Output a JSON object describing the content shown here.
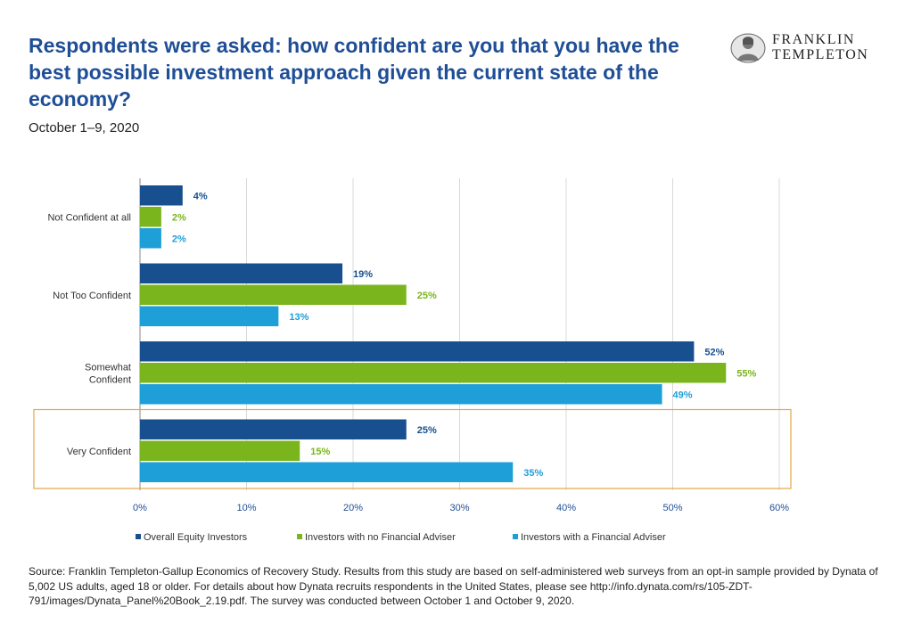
{
  "header": {
    "title": "Respondents were asked: how confident are you that you have the best possible investment approach given the current state of the economy?",
    "subtitle": "October 1–9, 2020"
  },
  "logo": {
    "line1": "FRANKLIN",
    "line2": "TEMPLETON",
    "icon": "portrait-icon"
  },
  "chart_data": {
    "type": "bar",
    "orientation": "horizontal",
    "categories": [
      "Not Confident at all",
      "Not Too Confident",
      "Somewhat Confident",
      "Very Confident"
    ],
    "series": [
      {
        "name": "Overall Equity Investors",
        "color": "#174f8f",
        "label_color": "#174f8f",
        "values": [
          4,
          19,
          52,
          25
        ]
      },
      {
        "name": "Investors with no Financial Adviser",
        "color": "#7ab51d",
        "label_color": "#7ab51d",
        "values": [
          2,
          25,
          55,
          15
        ]
      },
      {
        "name": "Investors with a Financial Adviser",
        "color": "#1e9fd8",
        "label_color": "#1e9fd8",
        "values": [
          2,
          13,
          49,
          35
        ]
      }
    ],
    "value_suffix": "%",
    "xlim": [
      0,
      60
    ],
    "xticks": [
      "0%",
      "10%",
      "20%",
      "30%",
      "40%",
      "50%",
      "60%"
    ],
    "grid": true,
    "legend_position": "bottom",
    "highlighted_category": "Very Confident",
    "highlight_color": "#e3a64a"
  },
  "footer": {
    "source": "Source: Franklin Templeton-Gallup Economics of Recovery Study. Results from this study are based on self-administered web surveys from an opt-in sample provided by Dynata of 5,002 US adults, aged 18 or older. For details about how Dynata recruits respondents in the United States, please see http://info.dynata.com/rs/105-ZDT-791/images/Dynata_Panel%20Book_2.19.pdf. The survey was conducted between October 1 and October 9, 2020."
  }
}
